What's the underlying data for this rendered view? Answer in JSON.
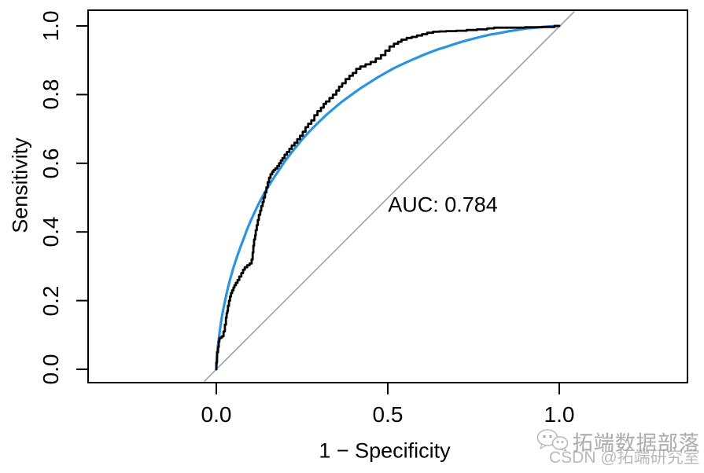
{
  "figure": {
    "background": "#ffffff",
    "border_color": "#000000"
  },
  "chart_data": {
    "type": "line",
    "title": "",
    "xlabel": "1 − Specificity",
    "ylabel": "Sensitivity",
    "xlim": [
      0,
      1
    ],
    "ylim": [
      0,
      1
    ],
    "grid": false,
    "x_ticks": [
      0.0,
      0.5,
      1.0
    ],
    "x_tick_labels": [
      "0.0",
      "0.5",
      "1.0"
    ],
    "y_ticks": [
      0.0,
      0.2,
      0.4,
      0.6,
      0.8,
      1.0
    ],
    "y_tick_labels": [
      "0.0",
      "0.2",
      "0.4",
      "0.6",
      "0.8",
      "1.0"
    ],
    "annotation": "AUC: 0.784",
    "auc": 0.784,
    "series": [
      {
        "name": "chance-diagonal",
        "label": "Reference diagonal",
        "style": "line",
        "color": "#A6A6A6",
        "width": 1.7,
        "points": [
          [
            -0.034,
            -0.034
          ],
          [
            1.043,
            1.041
          ]
        ]
      },
      {
        "name": "roc-smoothed",
        "label": "Smoothed ROC curve",
        "style": "line",
        "color": "#2B94E1",
        "width": 3.2,
        "points": [
          [
            0,
            0
          ],
          [
            0.002,
            0.038
          ],
          [
            0.005,
            0.071
          ],
          [
            0.01,
            0.112
          ],
          [
            0.015,
            0.145
          ],
          [
            0.02,
            0.173
          ],
          [
            0.03,
            0.221
          ],
          [
            0.04,
            0.261
          ],
          [
            0.05,
            0.296
          ],
          [
            0.06,
            0.327
          ],
          [
            0.07,
            0.355
          ],
          [
            0.08,
            0.381
          ],
          [
            0.09,
            0.408
          ],
          [
            0.1,
            0.432
          ],
          [
            0.12,
            0.475
          ],
          [
            0.14,
            0.513
          ],
          [
            0.16,
            0.546
          ],
          [
            0.18,
            0.576
          ],
          [
            0.2,
            0.606
          ],
          [
            0.22,
            0.632
          ],
          [
            0.25,
            0.669
          ],
          [
            0.27,
            0.691
          ],
          [
            0.3,
            0.721
          ],
          [
            0.32,
            0.74
          ],
          [
            0.35,
            0.766
          ],
          [
            0.37,
            0.782
          ],
          [
            0.4,
            0.804
          ],
          [
            0.42,
            0.818
          ],
          [
            0.45,
            0.837
          ],
          [
            0.47,
            0.85
          ],
          [
            0.5,
            0.867
          ],
          [
            0.52,
            0.878
          ],
          [
            0.55,
            0.892
          ],
          [
            0.57,
            0.901
          ],
          [
            0.6,
            0.914
          ],
          [
            0.62,
            0.922
          ],
          [
            0.65,
            0.933
          ],
          [
            0.67,
            0.939
          ],
          [
            0.7,
            0.949
          ],
          [
            0.72,
            0.955
          ],
          [
            0.75,
            0.963
          ],
          [
            0.77,
            0.968
          ],
          [
            0.8,
            0.975
          ],
          [
            0.82,
            0.978
          ],
          [
            0.85,
            0.984
          ],
          [
            0.87,
            0.987
          ],
          [
            0.9,
            0.992
          ],
          [
            0.92,
            0.994
          ],
          [
            0.95,
            0.997
          ],
          [
            0.98,
            0.999
          ],
          [
            1,
            1
          ]
        ]
      },
      {
        "name": "roc-empirical",
        "label": "Empirical ROC curve",
        "style": "step",
        "color": "#000000",
        "width": 2.8,
        "points": [
          [
            0,
            0
          ],
          [
            0.002,
            0.02
          ],
          [
            0.002,
            0.04
          ],
          [
            0.005,
            0.05
          ],
          [
            0.007,
            0.065
          ],
          [
            0.009,
            0.08
          ],
          [
            0.012,
            0.09
          ],
          [
            0.016,
            0.092
          ],
          [
            0.021,
            0.096
          ],
          [
            0.025,
            0.11
          ],
          [
            0.028,
            0.13
          ],
          [
            0.03,
            0.15
          ],
          [
            0.032,
            0.163
          ],
          [
            0.034,
            0.17
          ],
          [
            0.037,
            0.185
          ],
          [
            0.04,
            0.2
          ],
          [
            0.043,
            0.212
          ],
          [
            0.046,
            0.222
          ],
          [
            0.05,
            0.23
          ],
          [
            0.053,
            0.238
          ],
          [
            0.057,
            0.245
          ],
          [
            0.062,
            0.252
          ],
          [
            0.067,
            0.26
          ],
          [
            0.073,
            0.27
          ],
          [
            0.078,
            0.28
          ],
          [
            0.083,
            0.29
          ],
          [
            0.09,
            0.297
          ],
          [
            0.097,
            0.303
          ],
          [
            0.103,
            0.308
          ],
          [
            0.106,
            0.32
          ],
          [
            0.108,
            0.34
          ],
          [
            0.11,
            0.36
          ],
          [
            0.113,
            0.378
          ],
          [
            0.115,
            0.39
          ],
          [
            0.118,
            0.405
          ],
          [
            0.121,
            0.42
          ],
          [
            0.124,
            0.435
          ],
          [
            0.128,
            0.45
          ],
          [
            0.131,
            0.462
          ],
          [
            0.135,
            0.475
          ],
          [
            0.138,
            0.487
          ],
          [
            0.142,
            0.5
          ],
          [
            0.146,
            0.515
          ],
          [
            0.15,
            0.53
          ],
          [
            0.154,
            0.545
          ],
          [
            0.158,
            0.558
          ],
          [
            0.163,
            0.568
          ],
          [
            0.167,
            0.575
          ],
          [
            0.172,
            0.58
          ],
          [
            0.178,
            0.585
          ],
          [
            0.183,
            0.592
          ],
          [
            0.188,
            0.6
          ],
          [
            0.193,
            0.608
          ],
          [
            0.199,
            0.615
          ],
          [
            0.206,
            0.625
          ],
          [
            0.213,
            0.633
          ],
          [
            0.22,
            0.642
          ],
          [
            0.228,
            0.652
          ],
          [
            0.236,
            0.66
          ],
          [
            0.244,
            0.67
          ],
          [
            0.252,
            0.68
          ],
          [
            0.26,
            0.692
          ],
          [
            0.268,
            0.705
          ],
          [
            0.277,
            0.715
          ],
          [
            0.286,
            0.725
          ],
          [
            0.295,
            0.74
          ],
          [
            0.305,
            0.752
          ],
          [
            0.313,
            0.762
          ],
          [
            0.32,
            0.773
          ],
          [
            0.33,
            0.78
          ],
          [
            0.34,
            0.79
          ],
          [
            0.35,
            0.8
          ],
          [
            0.358,
            0.812
          ],
          [
            0.367,
            0.823
          ],
          [
            0.377,
            0.833
          ],
          [
            0.388,
            0.845
          ],
          [
            0.398,
            0.855
          ],
          [
            0.408,
            0.863
          ],
          [
            0.42,
            0.875
          ],
          [
            0.435,
            0.882
          ],
          [
            0.45,
            0.888
          ],
          [
            0.465,
            0.895
          ],
          [
            0.48,
            0.905
          ],
          [
            0.493,
            0.915
          ],
          [
            0.505,
            0.928
          ],
          [
            0.518,
            0.94
          ],
          [
            0.53,
            0.948
          ],
          [
            0.54,
            0.954
          ],
          [
            0.555,
            0.96
          ],
          [
            0.57,
            0.965
          ],
          [
            0.585,
            0.968
          ],
          [
            0.6,
            0.972
          ],
          [
            0.615,
            0.976
          ],
          [
            0.632,
            0.98
          ],
          [
            0.65,
            0.983
          ],
          [
            0.67,
            0.984
          ],
          [
            0.7,
            0.985
          ],
          [
            0.73,
            0.986
          ],
          [
            0.76,
            0.988
          ],
          [
            0.79,
            0.99
          ],
          [
            0.81,
            0.993
          ],
          [
            0.826,
            0.995
          ],
          [
            0.9,
            0.995
          ],
          [
            0.95,
            0.996
          ],
          [
            0.986,
            0.997
          ],
          [
            1,
            1
          ]
        ]
      }
    ]
  },
  "watermark": {
    "icon": "wechat-icon",
    "line1": "拓端数据部落",
    "line2": "CSDN @拓端研究室"
  }
}
